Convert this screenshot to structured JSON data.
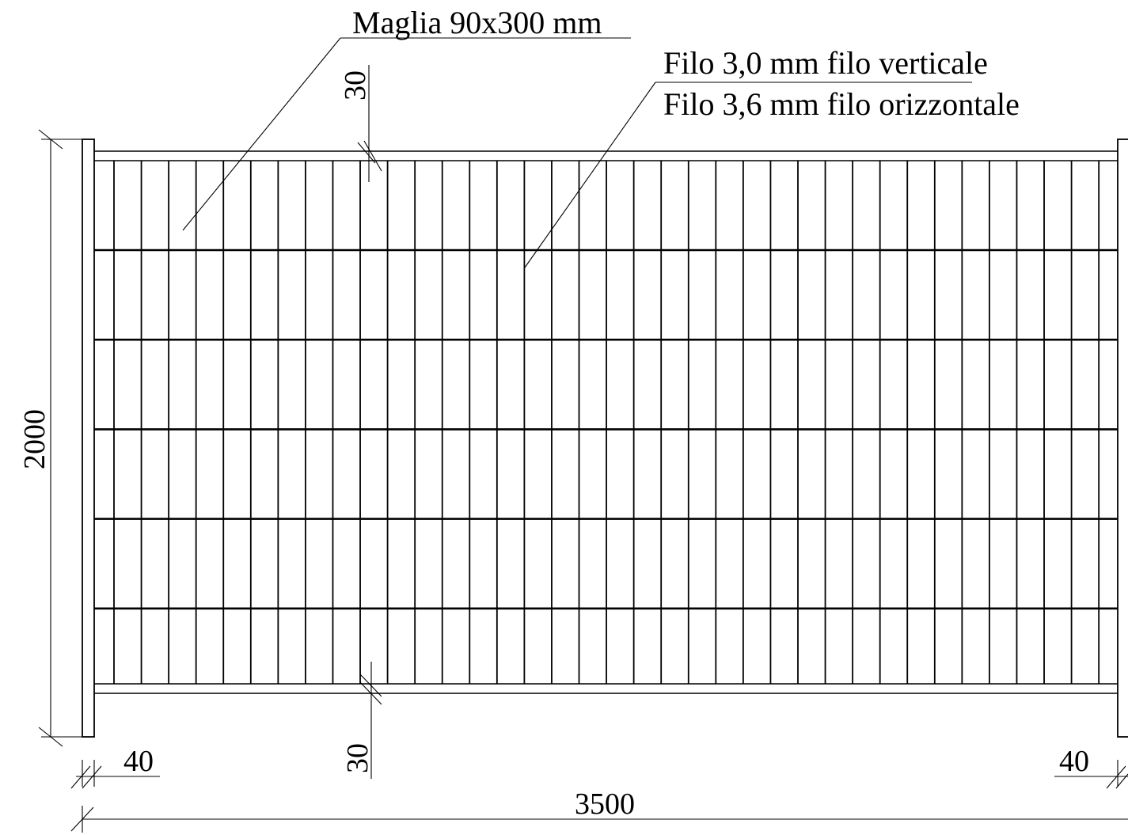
{
  "annotations": {
    "mesh_label": "Maglia 90x300 mm",
    "wire_vertical_label": "Filo 3,0 mm filo verticale",
    "wire_horizontal_label": "Filo 3,6 mm filo orizzontale"
  },
  "dimensions": {
    "height": "2000",
    "width": "3500",
    "top_offset": "30",
    "bottom_offset": "30",
    "left_post": "40",
    "right_post": "40"
  },
  "panel": {
    "vertical_wire_count": 37,
    "horizontal_wire_count": 6,
    "colors": {
      "line": "#000000",
      "background": "#ffffff"
    }
  }
}
